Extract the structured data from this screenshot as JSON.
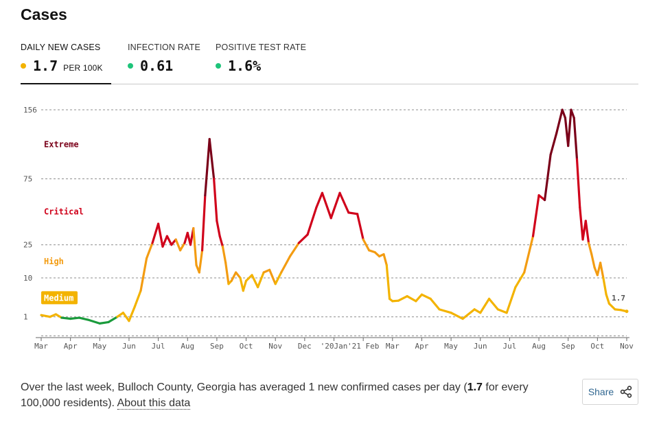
{
  "title": "Cases",
  "tabs": [
    {
      "label": "DAILY NEW CASES",
      "value": "1.7",
      "unit": "PER 100K",
      "dot_color": "#f3b300",
      "active": true
    },
    {
      "label": "INFECTION RATE",
      "value": "0.61",
      "unit": "",
      "dot_color": "#1ec47a",
      "active": false
    },
    {
      "label": "POSITIVE TEST RATE",
      "value": "1.6%",
      "unit": "",
      "dot_color": "#1ec47a",
      "active": false
    }
  ],
  "summary": {
    "before": "Over the last week, Bulloch County, Georgia has averaged 1 new confirmed cases per day (",
    "bold": "1.7",
    "after": " for every 100,000 residents).",
    "link": "About this data"
  },
  "share": {
    "label": "Share",
    "icon": "share-icon"
  },
  "chart_data": {
    "type": "line",
    "ylabel": "",
    "xlabel": "",
    "y_scale": "sqrt",
    "y_ticks": [
      1,
      10,
      25,
      75,
      156
    ],
    "y_tick_labels": [
      "1",
      "10",
      "25",
      "75",
      "156"
    ],
    "x_tick_labels": [
      "Mar",
      "Apr",
      "May",
      "Jun",
      "Jul",
      "Aug",
      "Sep",
      "Oct",
      "Nov",
      "Dec",
      "'20Jan",
      "'21 Feb",
      "Mar",
      "Apr",
      "May",
      "Jun",
      "Jul",
      "Aug",
      "Sep",
      "Oct",
      "Nov"
    ],
    "zones": [
      {
        "label": "Medium",
        "min": 1,
        "max": 10,
        "color": "#f3b300"
      },
      {
        "label": "High",
        "min": 10,
        "max": 25,
        "color": "#f39c12"
      },
      {
        "label": "Critical",
        "min": 25,
        "max": 75,
        "color": "#d0021b"
      },
      {
        "label": "Extreme",
        "min": 75,
        "max": 156,
        "color": "#7a0019"
      }
    ],
    "low_color": "#1a9b3c",
    "latest_label": "1.7",
    "series": [
      {
        "x": [
          0,
          0.3,
          0.5,
          0.7,
          1,
          1.3,
          1.6,
          2,
          2.3,
          2.6,
          2.8,
          3.0,
          3.2,
          3.4,
          3.6,
          3.8,
          4.0,
          4.15,
          4.3,
          4.45,
          4.6,
          4.75,
          4.9,
          5.0,
          5.1,
          5.2,
          5.3,
          5.4,
          5.5,
          5.6,
          5.75,
          5.9,
          6.0,
          6.1,
          6.2,
          6.3,
          6.4,
          6.5,
          6.65,
          6.8,
          6.9,
          7.0,
          7.2,
          7.4,
          7.6,
          7.8,
          8.0,
          8.2,
          8.5,
          8.8,
          9.1,
          9.4,
          9.6,
          9.9,
          10.2,
          10.5,
          10.8,
          11.0,
          11.2,
          11.4,
          11.55,
          11.7,
          11.8,
          11.9,
          12.0,
          12.2,
          12.5,
          12.8,
          13.0,
          13.3,
          13.6,
          14.0,
          14.4,
          14.8,
          15.0,
          15.3,
          15.6,
          15.9,
          16.2,
          16.5,
          16.8,
          17.0,
          17.2,
          17.4,
          17.6,
          17.8,
          17.9,
          18.0,
          18.1,
          18.2,
          18.3,
          18.4,
          18.5,
          18.6,
          18.7,
          18.8,
          18.9,
          19.0,
          19.1,
          19.2,
          19.3,
          19.4,
          19.6,
          19.8,
          20.0
        ],
        "values": [
          1.2,
          1.0,
          1.3,
          0.9,
          0.8,
          0.9,
          0.7,
          0.4,
          0.5,
          1.0,
          1.5,
          0.6,
          2.5,
          6,
          18,
          26,
          38,
          24,
          30,
          25,
          28,
          22,
          26,
          32,
          25,
          35,
          15,
          12,
          22,
          60,
          118,
          75,
          40,
          30,
          24,
          16,
          8,
          9,
          12,
          10,
          6,
          9,
          11,
          7,
          12,
          13,
          8,
          12,
          19,
          26,
          31,
          50,
          62,
          42,
          62,
          46,
          45,
          28,
          22,
          21,
          19,
          20,
          15,
          4,
          3.5,
          3.6,
          4.6,
          3.5,
          5.0,
          4.0,
          2.0,
          1.5,
          0.8,
          2.0,
          1.5,
          4.0,
          2.0,
          1.5,
          7,
          12,
          30,
          60,
          56,
          100,
          125,
          156,
          145,
          110,
          156,
          145,
          95,
          50,
          28,
          40,
          26,
          20,
          14,
          11,
          16,
          10,
          5,
          3.0,
          2.0,
          1.9,
          1.7
        ]
      }
    ]
  }
}
